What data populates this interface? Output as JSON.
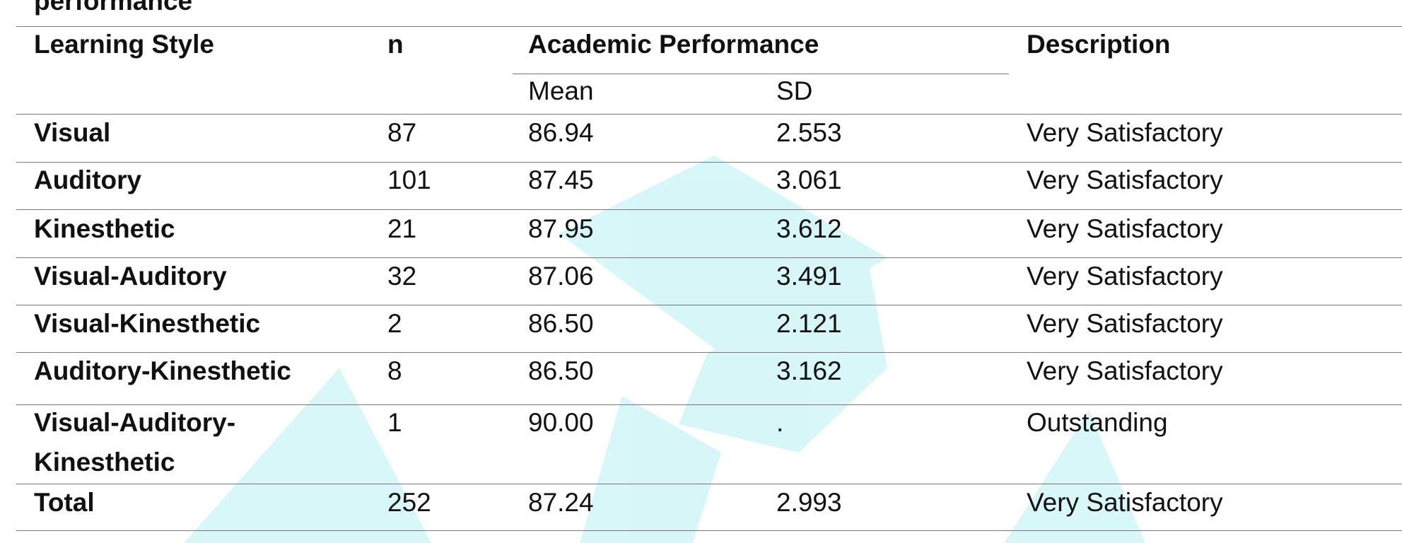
{
  "caption": "performance",
  "table": {
    "headers": [
      "Learning Style",
      "n",
      "Academic Performance",
      "Description"
    ],
    "subheaders": [
      "Mean",
      "SD"
    ],
    "rows": [
      [
        "Visual",
        "87",
        "86.94",
        "2.553",
        "Very Satisfactory"
      ],
      [
        "Auditory",
        "101",
        "87.45",
        "3.061",
        "Very Satisfactory"
      ],
      [
        "Kinesthetic",
        "21",
        "87.95",
        "3.612",
        "Very Satisfactory"
      ],
      [
        "Visual-Auditory",
        "32",
        "87.06",
        "3.491",
        "Very Satisfactory"
      ],
      [
        "Visual-Kinesthetic",
        "2",
        "86.50",
        "2.121",
        "Very Satisfactory"
      ],
      [
        "Auditory-Kinesthetic",
        "8",
        "86.50",
        "3.162",
        "Very Satisfactory"
      ],
      [
        "Visual-Auditory-Kinesthetic",
        "1",
        "90.00",
        ".",
        "Outstanding"
      ],
      [
        "Total",
        "252",
        "87.24",
        "2.993",
        "Very Satisfactory"
      ]
    ]
  }
}
